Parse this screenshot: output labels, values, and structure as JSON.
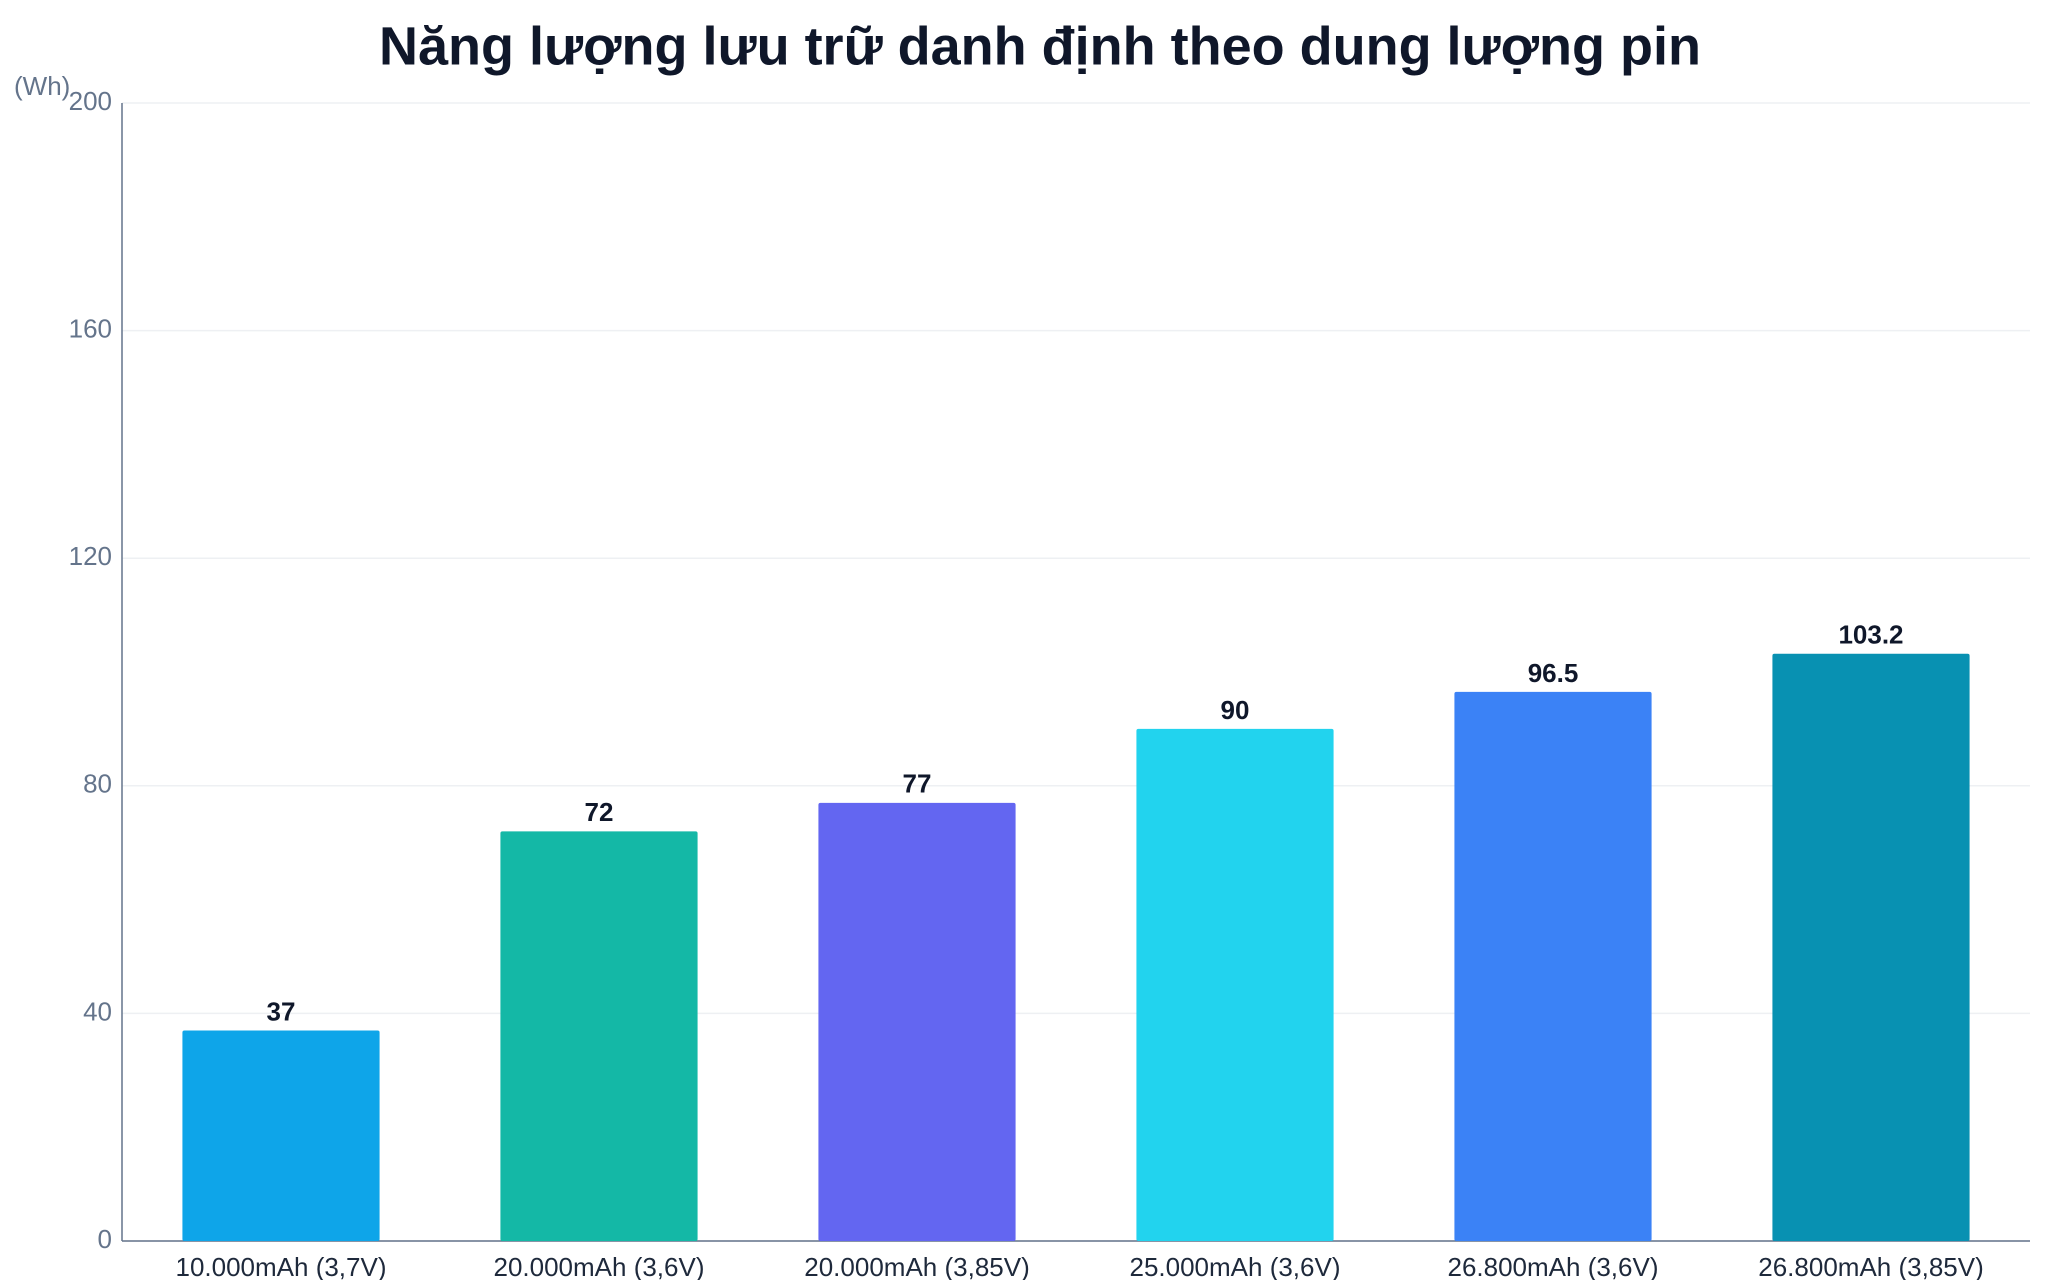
{
  "chart_data": {
    "type": "bar",
    "title": "Năng lượng lưu trữ danh định theo dung lượng pin",
    "y_label": "(Wh)",
    "categories": [
      "10.000mAh (3,7V)",
      "20.000mAh (3,6V)",
      "20.000mAh (3,85V)",
      "25.000mAh (3,6V)",
      "26.800mAh (3,6V)",
      "26.800mAh (3,85V)"
    ],
    "values": [
      37,
      72,
      77,
      90,
      96.5,
      103.2
    ],
    "colors": [
      "#0ea5e9",
      "#14b8a6",
      "#6366f1",
      "#22d3ee",
      "#3b82f6",
      "#0891b2"
    ],
    "ylim": [
      0,
      200
    ],
    "yticks": [
      0,
      40,
      80,
      120,
      160,
      200
    ],
    "grid": true
  }
}
